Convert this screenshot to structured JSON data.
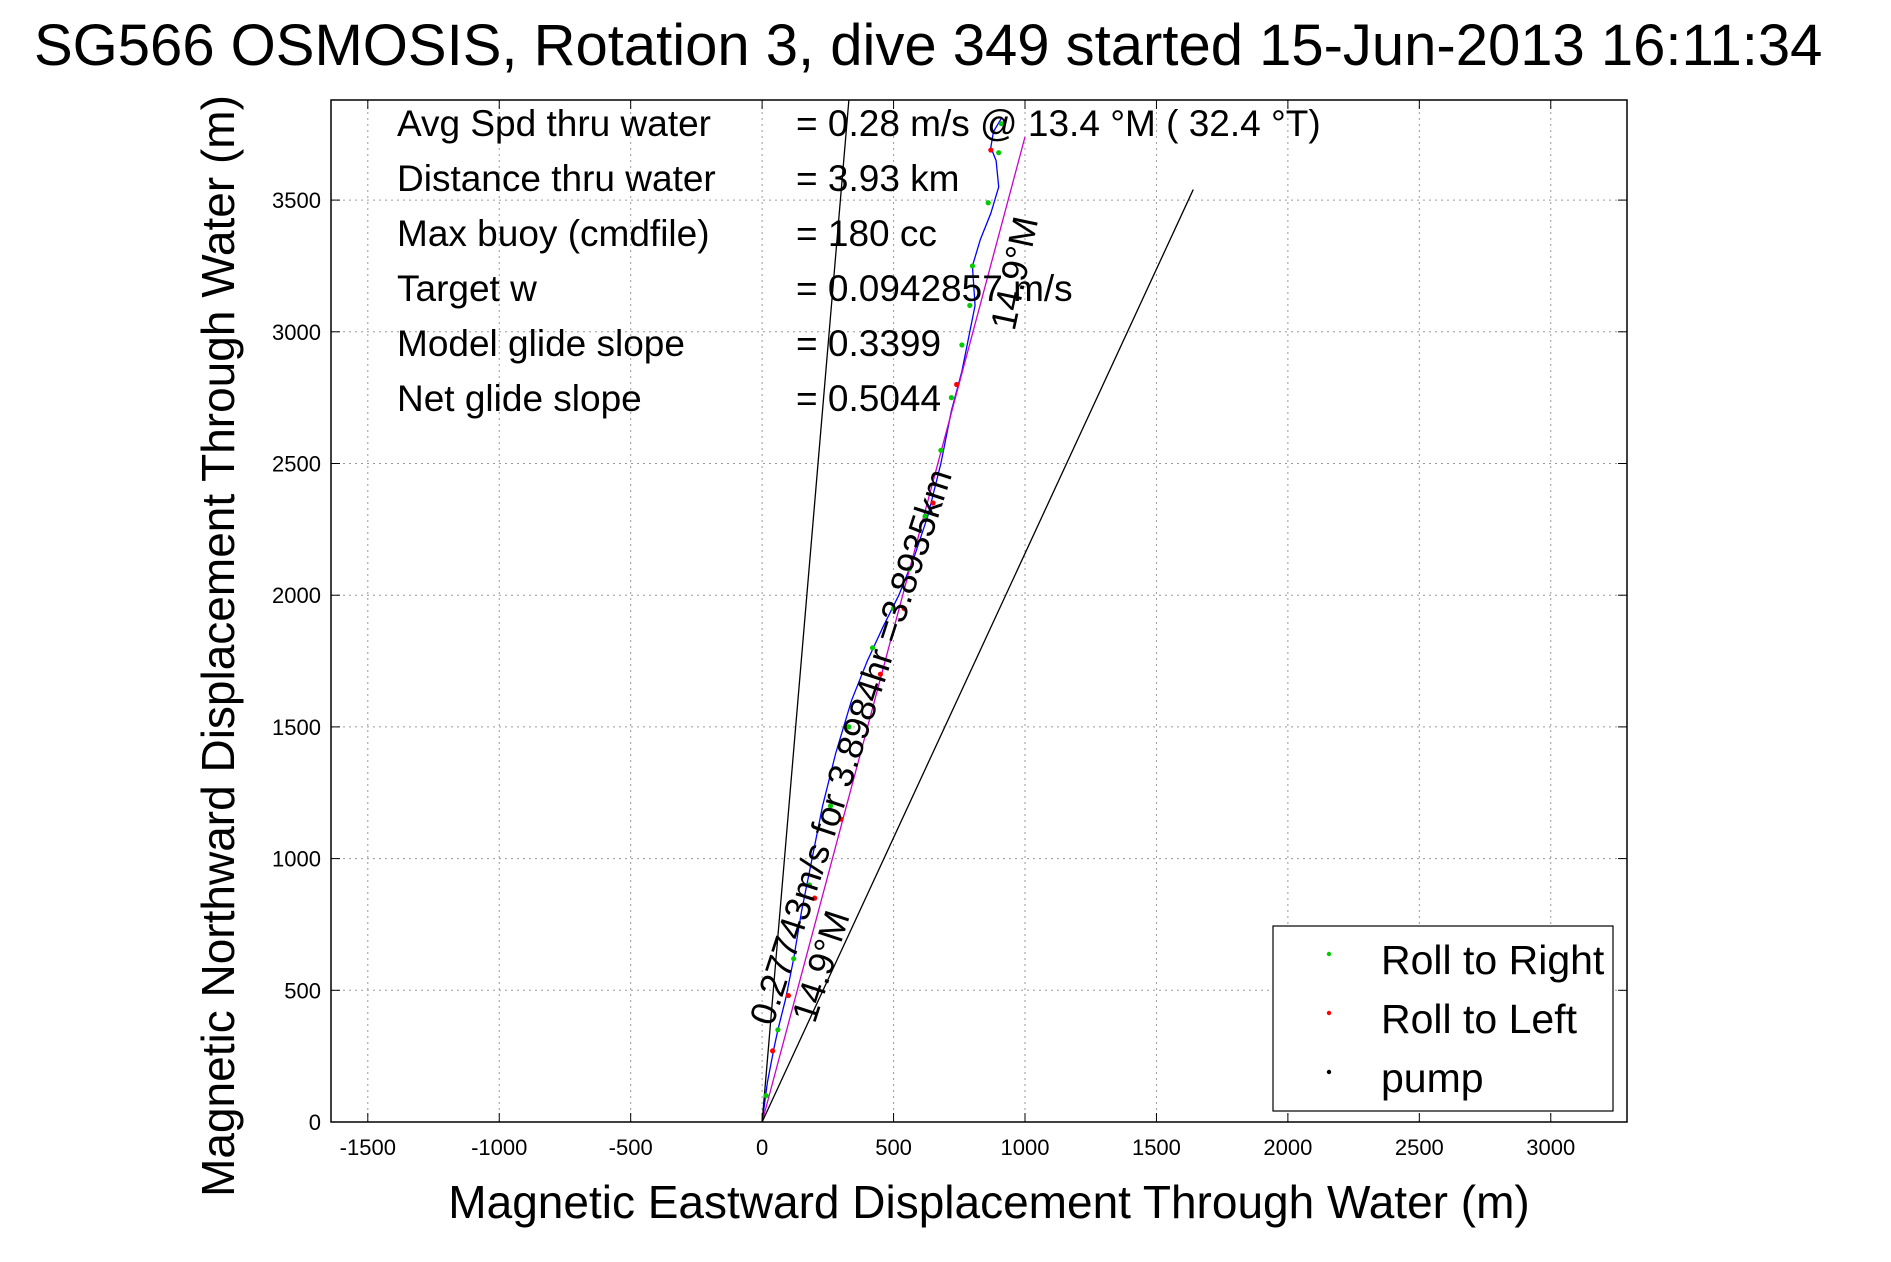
{
  "chart_data": {
    "type": "line",
    "title": "SG566 OSMOSIS, Rotation 3, dive 349 started 15-Jun-2013 16:11:34",
    "xlabel": "Magnetic Eastward Displacement Through Water (m)",
    "ylabel": "Magnetic Northward Displacement Through Water (m)",
    "xlim": [
      -1640,
      3290
    ],
    "ylim": [
      0,
      3880
    ],
    "xticks": [
      -1500,
      -1000,
      -500,
      0,
      500,
      1000,
      1500,
      2000,
      2500,
      3000
    ],
    "yticks": [
      0,
      500,
      1000,
      1500,
      2000,
      2500,
      3000,
      3500
    ],
    "grid": true,
    "info": [
      {
        "label": "Avg Spd thru water",
        "value": "=  0.28 m/s @  13.4 °M ( 32.4 °T)"
      },
      {
        "label": "Distance thru water",
        "value": "=  3.93 km"
      },
      {
        "label": "Max buoy (cmdfile)",
        "value": "= 180 cc"
      },
      {
        "label": "Target w",
        "value": "= 0.0942857 m/s"
      },
      {
        "label": "Model glide slope",
        "value": "= 0.3399"
      },
      {
        "label": "Net glide slope",
        "value": "= 0.5044"
      }
    ],
    "annotations": [
      {
        "text": "0.27743m/s for 3.8984hr =3.8935km",
        "x": 40,
        "y": 360
      },
      {
        "text": "14.9°M",
        "x": 200,
        "y": 370
      },
      {
        "text": "14.9°M",
        "x": 960,
        "y": 3000
      }
    ],
    "legend": {
      "position": "bottom-right",
      "entries": [
        {
          "name": "Roll to Right",
          "color": "#00cc00"
        },
        {
          "name": "Roll to Left",
          "color": "#ff0000"
        },
        {
          "name": "pump",
          "color": "#000000"
        }
      ]
    },
    "series": [
      {
        "color": "#0000ff",
        "x": [
          0,
          20,
          45,
          60,
          90,
          120,
          150,
          190,
          230,
          280,
          340,
          400,
          460,
          520,
          580,
          630,
          680,
          720,
          760,
          790,
          810,
          800,
          830,
          870,
          900,
          890,
          870,
          880,
          910
        ],
        "y": [
          0,
          150,
          280,
          350,
          470,
          620,
          800,
          1000,
          1200,
          1400,
          1600,
          1750,
          1880,
          2000,
          2150,
          2300,
          2500,
          2700,
          2850,
          3000,
          3100,
          3250,
          3350,
          3450,
          3550,
          3650,
          3700,
          3760,
          3810
        ]
      },
      {
        "color": "#cc00cc",
        "x": [
          0,
          1000
        ],
        "y": [
          0,
          3740
        ]
      },
      {
        "color": "#000000",
        "x": [
          0,
          330
        ],
        "y": [
          0,
          3880
        ]
      },
      {
        "color": "#000000",
        "x": [
          0,
          1640
        ],
        "y": [
          0,
          3540
        ]
      }
    ],
    "markers": {
      "right": {
        "color": "#00cc00",
        "x": [
          15,
          60,
          120,
          180,
          260,
          330,
          420,
          500,
          560,
          620,
          680,
          720,
          760,
          790,
          800,
          860,
          900,
          910
        ],
        "y": [
          100,
          350,
          620,
          900,
          1200,
          1500,
          1800,
          1950,
          2100,
          2300,
          2550,
          2750,
          2950,
          3100,
          3250,
          3490,
          3680,
          3790
        ]
      },
      "left": {
        "color": "#ff0000",
        "x": [
          40,
          100,
          200,
          300,
          450,
          540,
          650,
          740,
          870
        ],
        "y": [
          270,
          480,
          850,
          1150,
          1700,
          1950,
          2350,
          2800,
          3690
        ]
      }
    }
  }
}
